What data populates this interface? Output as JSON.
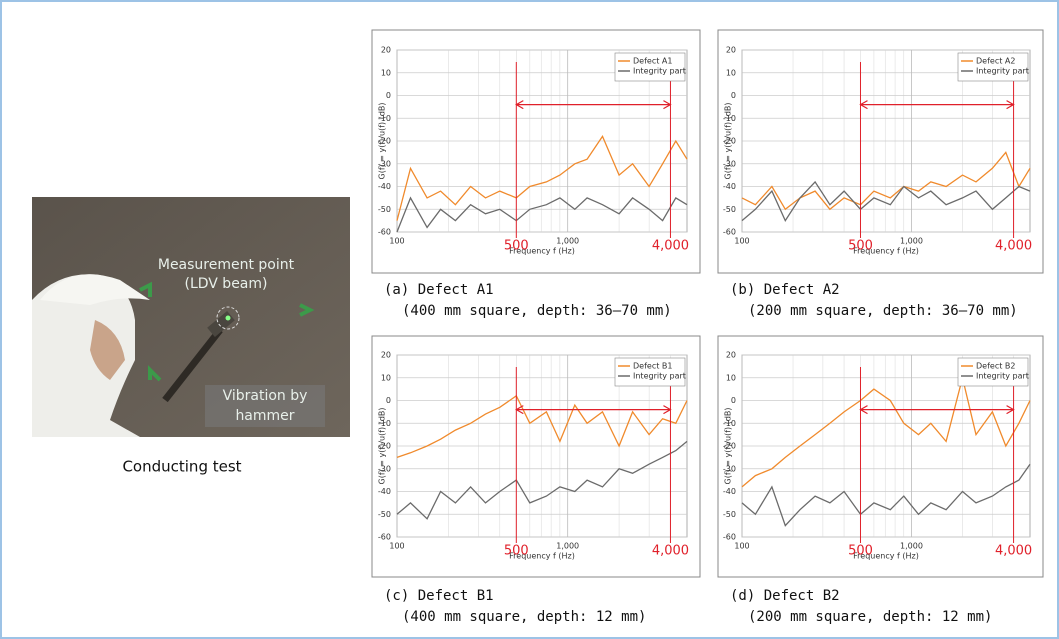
{
  "photo": {
    "labels": [
      "Measurement point",
      "(LDV beam)",
      "Vibration by",
      "hammer"
    ],
    "caption": "Conducting test"
  },
  "chart_data": [
    {
      "type": "line",
      "caption": [
        "(a) Defect A1",
        "(400 mm square, depth: 36–70 mm)"
      ],
      "x_label": "Frequency f (Hz)",
      "y_label": "G(f) = y(f)/u(f) (dB)",
      "log_x": true,
      "grid": true,
      "legend": "top-right",
      "xlim": [
        100,
        5000
      ],
      "xticks": [
        100,
        {
          "value": 1000,
          "label": "1,000"
        }
      ],
      "ylim": [
        -60,
        20
      ],
      "yticks": [
        -60,
        -50,
        -40,
        -30,
        -20,
        -10,
        0,
        10,
        20
      ],
      "markers": [
        500,
        {
          "value": 4000,
          "label": "4,000"
        }
      ],
      "marker_color": "#e0202a",
      "x": [
        100,
        120,
        150,
        180,
        220,
        270,
        330,
        400,
        500,
        600,
        750,
        900,
        1100,
        1300,
        1600,
        2000,
        2400,
        3000,
        3600,
        4300,
        5000
      ],
      "series": [
        {
          "name": "Defect A1",
          "color": "#f08a2c",
          "values": [
            -55,
            -32,
            -45,
            -42,
            -48,
            -40,
            -45,
            -42,
            -45,
            -40,
            -38,
            -35,
            -30,
            -28,
            -18,
            -35,
            -30,
            -40,
            -30,
            -20,
            -28
          ]
        },
        {
          "name": "Integrity part",
          "color": "#6b6b6b",
          "values": [
            -60,
            -45,
            -58,
            -50,
            -55,
            -48,
            -52,
            -50,
            -55,
            -50,
            -48,
            -45,
            -50,
            -45,
            -48,
            -52,
            -45,
            -50,
            -55,
            -45,
            -48
          ]
        }
      ]
    },
    {
      "type": "line",
      "caption": [
        "(b) Defect A2",
        "(200 mm square, depth: 36–70 mm)"
      ],
      "x_label": "Frequency f (Hz)",
      "y_label": "G(f) = y(f)/u(f) (dB)",
      "log_x": true,
      "grid": true,
      "legend": "top-right",
      "xlim": [
        100,
        5000
      ],
      "xticks": [
        100,
        {
          "value": 1000,
          "label": "1,000"
        }
      ],
      "ylim": [
        -60,
        20
      ],
      "yticks": [
        -60,
        -50,
        -40,
        -30,
        -20,
        -10,
        0,
        10,
        20
      ],
      "markers": [
        500,
        {
          "value": 4000,
          "label": "4,000"
        }
      ],
      "marker_color": "#e0202a",
      "x": [
        100,
        120,
        150,
        180,
        220,
        270,
        330,
        400,
        500,
        600,
        750,
        900,
        1100,
        1300,
        1600,
        2000,
        2400,
        3000,
        3600,
        4300,
        5000
      ],
      "series": [
        {
          "name": "Defect A2",
          "color": "#f08a2c",
          "values": [
            -45,
            -48,
            -40,
            -50,
            -45,
            -42,
            -50,
            -45,
            -48,
            -42,
            -45,
            -40,
            -42,
            -38,
            -40,
            -35,
            -38,
            -32,
            -25,
            -40,
            -32
          ]
        },
        {
          "name": "Integrity part",
          "color": "#6b6b6b",
          "values": [
            -55,
            -50,
            -42,
            -55,
            -45,
            -38,
            -48,
            -42,
            -50,
            -45,
            -48,
            -40,
            -45,
            -42,
            -48,
            -45,
            -42,
            -50,
            -45,
            -40,
            -42
          ]
        }
      ]
    },
    {
      "type": "line",
      "caption": [
        "(c) Defect B1",
        "(400 mm square, depth: 12 mm)"
      ],
      "x_label": "Frequency f (Hz)",
      "y_label": "G(f) = y(f)/u(f) (dB)",
      "log_x": true,
      "grid": true,
      "legend": "top-right",
      "xlim": [
        100,
        5000
      ],
      "xticks": [
        100,
        {
          "value": 1000,
          "label": "1,000"
        }
      ],
      "ylim": [
        -60,
        20
      ],
      "yticks": [
        -60,
        -50,
        -40,
        -30,
        -20,
        -10,
        0,
        10,
        20
      ],
      "markers": [
        500,
        {
          "value": 4000,
          "label": "4,000"
        }
      ],
      "marker_color": "#e0202a",
      "x": [
        100,
        120,
        150,
        180,
        220,
        270,
        330,
        400,
        500,
        600,
        750,
        900,
        1100,
        1300,
        1600,
        2000,
        2400,
        3000,
        3600,
        4300,
        5000
      ],
      "series": [
        {
          "name": "Defect B1",
          "color": "#f08a2c",
          "values": [
            -25,
            -23,
            -20,
            -17,
            -13,
            -10,
            -6,
            -3,
            2,
            -10,
            -5,
            -18,
            -2,
            -10,
            -5,
            -20,
            -5,
            -15,
            -8,
            -10,
            0
          ]
        },
        {
          "name": "Integrity part",
          "color": "#6b6b6b",
          "values": [
            -50,
            -45,
            -52,
            -40,
            -45,
            -38,
            -45,
            -40,
            -35,
            -45,
            -42,
            -38,
            -40,
            -35,
            -38,
            -30,
            -32,
            -28,
            -25,
            -22,
            -18
          ]
        }
      ]
    },
    {
      "type": "line",
      "caption": [
        "(d) Defect B2",
        "(200 mm square, depth: 12 mm)"
      ],
      "x_label": "Frequency f (Hz)",
      "y_label": "G(f) = y(f)/u(f) (dB)",
      "log_x": true,
      "grid": true,
      "legend": "top-right",
      "xlim": [
        100,
        5000
      ],
      "xticks": [
        100,
        {
          "value": 1000,
          "label": "1,000"
        }
      ],
      "ylim": [
        -60,
        20
      ],
      "yticks": [
        -60,
        -50,
        -40,
        -30,
        -20,
        -10,
        0,
        10,
        20
      ],
      "markers": [
        500,
        {
          "value": 4000,
          "label": "4,000"
        }
      ],
      "marker_color": "#e0202a",
      "x": [
        100,
        120,
        150,
        180,
        220,
        270,
        330,
        400,
        500,
        600,
        750,
        900,
        1100,
        1300,
        1600,
        2000,
        2400,
        3000,
        3600,
        4300,
        5000
      ],
      "series": [
        {
          "name": "Defect B2",
          "color": "#f08a2c",
          "values": [
            -38,
            -33,
            -30,
            -25,
            -20,
            -15,
            -10,
            -5,
            0,
            5,
            0,
            -10,
            -15,
            -10,
            -18,
            10,
            -15,
            -5,
            -20,
            -10,
            0
          ]
        },
        {
          "name": "Integrity part",
          "color": "#6b6b6b",
          "values": [
            -45,
            -50,
            -38,
            -55,
            -48,
            -42,
            -45,
            -40,
            -50,
            -45,
            -48,
            -42,
            -50,
            -45,
            -48,
            -40,
            -45,
            -42,
            -38,
            -35,
            -28
          ]
        }
      ]
    }
  ]
}
